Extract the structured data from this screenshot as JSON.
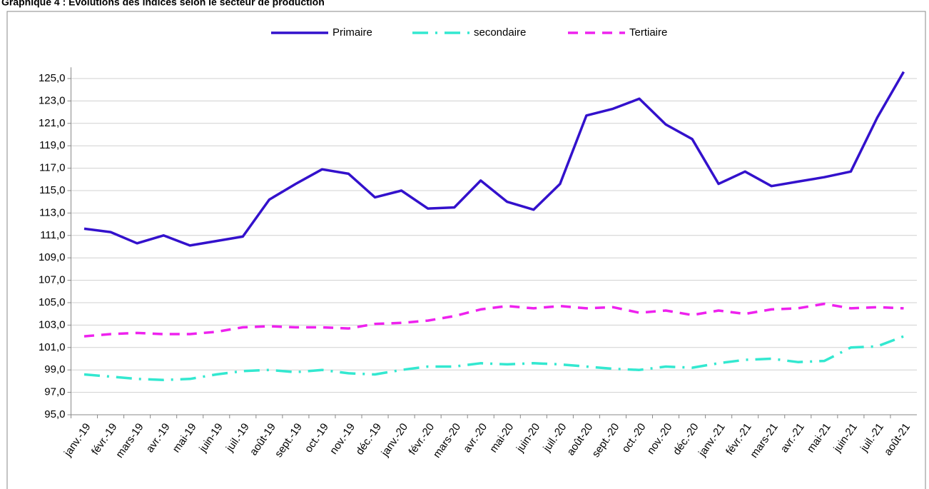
{
  "chart_data": {
    "type": "line",
    "title": "Graphique 4 : Evolutions des indices selon le secteur de production",
    "categories": [
      "janv.-19",
      "févr.-19",
      "mars-19",
      "avr.-19",
      "mai-19",
      "juin-19",
      "juil.-19",
      "août-19",
      "sept.-19",
      "oct.-19",
      "nov.-19",
      "déc.-19",
      "janv.-20",
      "févr.-20",
      "mars-20",
      "avr.-20",
      "mai-20",
      "juin-20",
      "juil.-20",
      "août-20",
      "sept.-20",
      "oct.-20",
      "nov.-20",
      "déc.-20",
      "janv.-21",
      "févr.-21",
      "mars-21",
      "avr.-21",
      "mai-21",
      "juin-21",
      "juil.-21",
      "août-21"
    ],
    "series": [
      {
        "name": "Primaire",
        "color": "#3311cc",
        "dash": "solid",
        "values": [
          111.6,
          111.3,
          110.3,
          111.0,
          110.1,
          110.5,
          110.9,
          114.2,
          115.6,
          116.9,
          116.5,
          114.4,
          115.0,
          113.4,
          113.5,
          115.9,
          114.0,
          113.3,
          115.6,
          121.7,
          122.3,
          123.2,
          120.9,
          119.6,
          115.6,
          116.7,
          115.4,
          115.8,
          116.2,
          116.7,
          121.5,
          125.6
        ]
      },
      {
        "name": "secondaire",
        "color": "#33e8d0",
        "dash": "dashdot",
        "values": [
          98.6,
          98.4,
          98.2,
          98.1,
          98.2,
          98.6,
          98.9,
          99.0,
          98.8,
          99.0,
          98.7,
          98.6,
          99.0,
          99.3,
          99.3,
          99.6,
          99.5,
          99.6,
          99.5,
          99.3,
          99.1,
          99.0,
          99.3,
          99.2,
          99.6,
          99.9,
          100.0,
          99.7,
          99.8,
          101.0,
          101.1,
          102.0
        ]
      },
      {
        "name": "Tertiaire",
        "color": "#ee22ee",
        "dash": "dash",
        "values": [
          102.0,
          102.2,
          102.3,
          102.2,
          102.2,
          102.4,
          102.8,
          102.9,
          102.8,
          102.8,
          102.7,
          103.1,
          103.2,
          103.4,
          103.8,
          104.4,
          104.7,
          104.5,
          104.7,
          104.5,
          104.6,
          104.1,
          104.3,
          103.9,
          104.3,
          104.0,
          104.4,
          104.5,
          104.9,
          104.5,
          104.6,
          104.5
        ]
      }
    ],
    "ylim": [
      95,
      126
    ],
    "yticks": [
      {
        "value": 95,
        "label": "95,0"
      },
      {
        "value": 97,
        "label": "97,0"
      },
      {
        "value": 99,
        "label": "99,0"
      },
      {
        "value": 101,
        "label": "101,0"
      },
      {
        "value": 103,
        "label": "103,0"
      },
      {
        "value": 105,
        "label": "105,0"
      },
      {
        "value": 107,
        "label": "107,0"
      },
      {
        "value": 109,
        "label": "109,0"
      },
      {
        "value": 111,
        "label": "111,0"
      },
      {
        "value": 113,
        "label": "113,0"
      },
      {
        "value": 115,
        "label": "115,0"
      },
      {
        "value": 117,
        "label": "117,0"
      },
      {
        "value": 119,
        "label": "119,0"
      },
      {
        "value": 121,
        "label": "121,0"
      },
      {
        "value": 123,
        "label": "123,0"
      },
      {
        "value": 125,
        "label": "125,0"
      }
    ],
    "grid": true,
    "legend": "top"
  }
}
